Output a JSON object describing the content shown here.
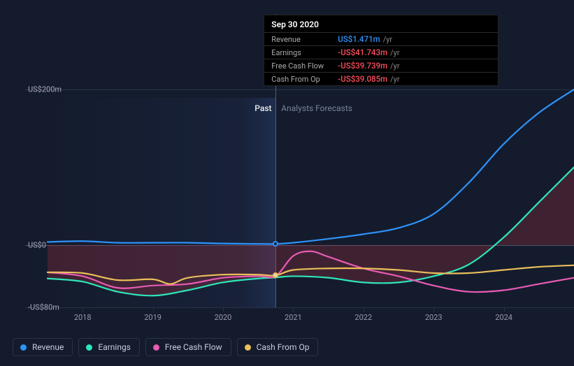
{
  "chart": {
    "type": "line",
    "background_color": "#141b2d",
    "grid_color": "#2a3245",
    "zero_line_color": "#4a5268",
    "text_color": "#aab",
    "line_width": 2.2,
    "y_axis": {
      "unit_prefix": "US$",
      "ticks": [
        {
          "value": 200,
          "label": "US$200m"
        },
        {
          "value": 0,
          "label": "US$0"
        },
        {
          "value": -80,
          "label": "-US$80m"
        }
      ],
      "min": -80,
      "max": 200
    },
    "x_axis": {
      "ticks": [
        "2018",
        "2019",
        "2020",
        "2021",
        "2022",
        "2023",
        "2024"
      ],
      "min": 2017.5,
      "max": 2025.0,
      "divider_at": 2020.75
    },
    "sections": {
      "past_label": "Past",
      "forecast_label": "Analysts Forecasts"
    },
    "series": [
      {
        "id": "revenue",
        "name": "Revenue",
        "color": "#2e93fa",
        "fill": "none",
        "points": [
          [
            2017.5,
            4
          ],
          [
            2018.0,
            5
          ],
          [
            2018.5,
            3
          ],
          [
            2019.0,
            3
          ],
          [
            2019.5,
            3
          ],
          [
            2020.0,
            2
          ],
          [
            2020.5,
            1.5
          ],
          [
            2020.75,
            1.47
          ],
          [
            2021.0,
            3
          ],
          [
            2021.5,
            8
          ],
          [
            2022.0,
            14
          ],
          [
            2022.5,
            22
          ],
          [
            2023.0,
            40
          ],
          [
            2023.5,
            80
          ],
          [
            2024.0,
            130
          ],
          [
            2024.5,
            170
          ],
          [
            2025.0,
            200
          ]
        ]
      },
      {
        "id": "earnings",
        "name": "Earnings",
        "color": "#2ee6b9",
        "fill": "rgba(220,60,70,0.22)",
        "fill_to": 0,
        "points": [
          [
            2017.5,
            -43
          ],
          [
            2018.0,
            -47
          ],
          [
            2018.5,
            -60
          ],
          [
            2019.0,
            -65
          ],
          [
            2019.5,
            -58
          ],
          [
            2020.0,
            -48
          ],
          [
            2020.5,
            -43
          ],
          [
            2020.75,
            -41.7
          ],
          [
            2021.0,
            -40
          ],
          [
            2021.5,
            -42
          ],
          [
            2022.0,
            -48
          ],
          [
            2022.5,
            -48
          ],
          [
            2023.0,
            -40
          ],
          [
            2023.5,
            -25
          ],
          [
            2024.0,
            10
          ],
          [
            2024.5,
            55
          ],
          [
            2025.0,
            100
          ]
        ]
      },
      {
        "id": "fcf",
        "name": "Free Cash Flow",
        "color": "#e85bb3",
        "fill": "none",
        "points": [
          [
            2017.5,
            -35
          ],
          [
            2018.0,
            -40
          ],
          [
            2018.5,
            -55
          ],
          [
            2019.0,
            -52
          ],
          [
            2019.5,
            -50
          ],
          [
            2020.0,
            -42
          ],
          [
            2020.5,
            -40
          ],
          [
            2020.75,
            -39.7
          ],
          [
            2021.0,
            -14
          ],
          [
            2021.25,
            -8
          ],
          [
            2021.5,
            -15
          ],
          [
            2022.0,
            -30
          ],
          [
            2022.5,
            -40
          ],
          [
            2023.0,
            -52
          ],
          [
            2023.5,
            -60
          ],
          [
            2024.0,
            -58
          ],
          [
            2024.5,
            -50
          ],
          [
            2025.0,
            -42
          ]
        ]
      },
      {
        "id": "cfo",
        "name": "Cash From Op",
        "color": "#eabf5a",
        "fill": "none",
        "points": [
          [
            2017.5,
            -35
          ],
          [
            2018.0,
            -36
          ],
          [
            2018.5,
            -45
          ],
          [
            2019.0,
            -44
          ],
          [
            2019.25,
            -50
          ],
          [
            2019.5,
            -42
          ],
          [
            2020.0,
            -38
          ],
          [
            2020.5,
            -38
          ],
          [
            2020.75,
            -39.1
          ],
          [
            2021.0,
            -32
          ],
          [
            2021.5,
            -30
          ],
          [
            2022.0,
            -30
          ],
          [
            2022.5,
            -32
          ],
          [
            2023.0,
            -36
          ],
          [
            2023.5,
            -36
          ],
          [
            2024.0,
            -32
          ],
          [
            2024.5,
            -28
          ],
          [
            2025.0,
            -26
          ]
        ]
      }
    ],
    "cursor": {
      "x": 2020.75,
      "markers": [
        {
          "series": "revenue",
          "y": 1.47,
          "fill": "#1a2236",
          "stroke": "#2e93fa"
        },
        {
          "series": "cfo",
          "y": -39.1,
          "fill": "#e8dcb8",
          "stroke": "#eabf5a"
        }
      ]
    }
  },
  "tooltip": {
    "title": "Sep 30 2020",
    "rows": [
      {
        "label": "Revenue",
        "value": "US$1.471m",
        "unit": "/yr",
        "color": "#2e93fa"
      },
      {
        "label": "Earnings",
        "value": "-US$41.743m",
        "unit": "/yr",
        "color": "#ff4d5e"
      },
      {
        "label": "Free Cash Flow",
        "value": "-US$39.739m",
        "unit": "/yr",
        "color": "#ff4d5e"
      },
      {
        "label": "Cash From Op",
        "value": "-US$39.085m",
        "unit": "/yr",
        "color": "#ff4d5e"
      }
    ]
  },
  "legend": {
    "items": [
      {
        "label": "Revenue",
        "color": "#2e93fa"
      },
      {
        "label": "Earnings",
        "color": "#2ee6b9"
      },
      {
        "label": "Free Cash Flow",
        "color": "#e85bb3"
      },
      {
        "label": "Cash From Op",
        "color": "#eabf5a"
      }
    ]
  }
}
